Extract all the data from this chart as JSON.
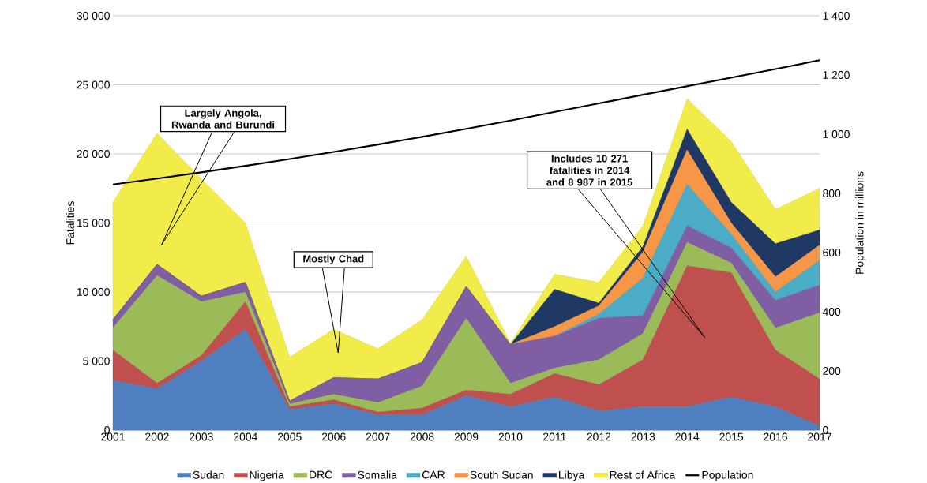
{
  "chart_data": {
    "type": "area",
    "stacked": true,
    "ylabel": "Fatalities",
    "y2label": "Population in millions",
    "x": [
      2001,
      2002,
      2003,
      2004,
      2005,
      2006,
      2007,
      2008,
      2009,
      2010,
      2011,
      2012,
      2013,
      2014,
      2015,
      2016,
      2017
    ],
    "series": [
      {
        "name": "Sudan",
        "color": "#4f7fbf",
        "values": [
          3600,
          3000,
          5000,
          7300,
          1500,
          1900,
          1100,
          1100,
          2500,
          1700,
          2400,
          1400,
          1700,
          1700,
          2400,
          1700,
          300
        ]
      },
      {
        "name": "Nigeria",
        "color": "#c0504d",
        "values": [
          2200,
          400,
          400,
          2000,
          200,
          300,
          200,
          500,
          400,
          900,
          1700,
          1900,
          3400,
          10200,
          9000,
          4100,
          3400
        ]
      },
      {
        "name": "DRC",
        "color": "#9bbb59",
        "values": [
          1600,
          7800,
          3900,
          700,
          200,
          400,
          700,
          1600,
          5200,
          800,
          400,
          1800,
          1900,
          1700,
          700,
          1600,
          4800
        ]
      },
      {
        "name": "Somalia",
        "color": "#7f5ea3",
        "values": [
          600,
          800,
          400,
          700,
          200,
          1200,
          1700,
          1700,
          2300,
          2800,
          2300,
          3000,
          1300,
          1200,
          1100,
          2000,
          2000
        ]
      },
      {
        "name": "CAR",
        "color": "#4bacc6",
        "values": [
          0,
          0,
          0,
          0,
          0,
          0,
          0,
          0,
          0,
          0,
          0,
          300,
          2700,
          3000,
          1000,
          600,
          1800
        ]
      },
      {
        "name": "South Sudan",
        "color": "#f79646",
        "values": [
          0,
          0,
          0,
          0,
          0,
          0,
          0,
          0,
          0,
          0,
          700,
          600,
          1900,
          2500,
          800,
          1100,
          1100
        ]
      },
      {
        "name": "Libya",
        "color": "#1f3864",
        "values": [
          0,
          0,
          0,
          0,
          0,
          0,
          0,
          0,
          0,
          0,
          2700,
          200,
          400,
          1500,
          1500,
          2400,
          1100
        ]
      },
      {
        "name": "Rest of Africa",
        "color": "#f2ec4a",
        "values": [
          8500,
          9500,
          8500,
          4300,
          3200,
          3500,
          2200,
          3100,
          2200,
          100,
          1100,
          1500,
          1500,
          2200,
          4400,
          2500,
          3000
        ]
      },
      {
        "name": "Population",
        "type": "line",
        "axis": "y2",
        "color": "#000000",
        "values": [
          830,
          850,
          871,
          893,
          916,
          940,
          965,
          991,
          1018,
          1046,
          1075,
          1104,
          1133,
          1162,
          1191,
          1220,
          1250
        ]
      }
    ],
    "xlim": [
      2001,
      2017
    ],
    "xticks": [
      2001,
      2002,
      2003,
      2004,
      2005,
      2006,
      2007,
      2008,
      2009,
      2010,
      2011,
      2012,
      2013,
      2014,
      2015,
      2016,
      2017
    ],
    "ylim": [
      0,
      30000
    ],
    "yticks": [
      {
        "value": 0,
        "label": "0"
      },
      {
        "value": 5000,
        "label": "5 000"
      },
      {
        "value": 10000,
        "label": "10 000"
      },
      {
        "value": 15000,
        "label": "15 000"
      },
      {
        "value": 20000,
        "label": "20 000"
      },
      {
        "value": 25000,
        "label": "25 000"
      },
      {
        "value": 30000,
        "label": "30 000"
      }
    ],
    "y2lim": [
      0,
      1400
    ],
    "y2ticks": [
      0,
      200,
      400,
      600,
      800,
      {
        "value": 1000,
        "label": "1 000"
      },
      {
        "value": 1200,
        "label": "1 200"
      },
      {
        "value": 1400,
        "label": "1 400"
      }
    ],
    "annotations": [
      "Largely Angola, Rwanda and Burundi",
      "Mostly Chad",
      "Includes 10 271 fatalities in 2014 and 8 987 in 2015"
    ],
    "grid": "y",
    "legend": "bottom"
  }
}
